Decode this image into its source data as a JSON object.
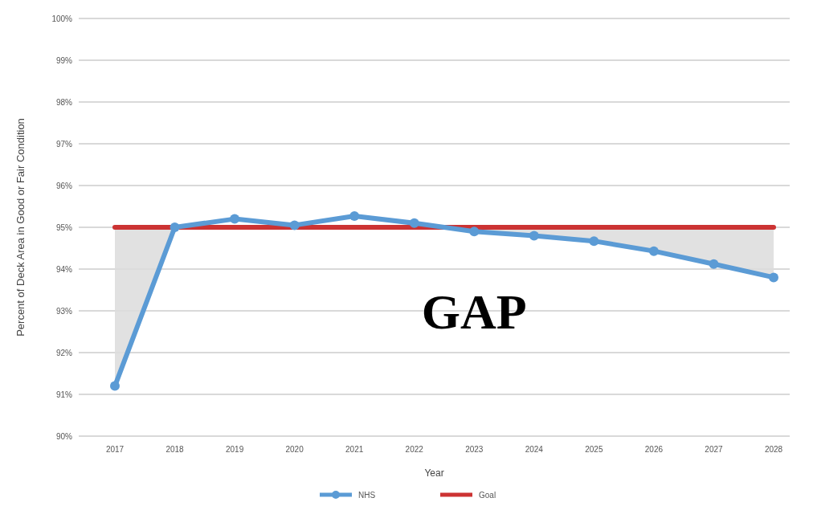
{
  "chart_data": {
    "type": "line",
    "categories": [
      "2017",
      "2018",
      "2019",
      "2020",
      "2021",
      "2022",
      "2023",
      "2024",
      "2025",
      "2026",
      "2027",
      "2028"
    ],
    "xlabel": "Year",
    "ylabel": "Percent of Deck Area in Good or Fair Condition",
    "ylim": [
      90,
      100
    ],
    "yticks": [
      {
        "value": 90,
        "label": "90%"
      },
      {
        "value": 91,
        "label": "91%"
      },
      {
        "value": 92,
        "label": "92%"
      },
      {
        "value": 93,
        "label": "93%"
      },
      {
        "value": 94,
        "label": "94%"
      },
      {
        "value": 95,
        "label": "95%"
      },
      {
        "value": 96,
        "label": "96%"
      },
      {
        "value": 97,
        "label": "97%"
      },
      {
        "value": 98,
        "label": "98%"
      },
      {
        "value": 99,
        "label": "99%"
      },
      {
        "value": 100,
        "label": "100%"
      }
    ],
    "grid": "y",
    "legend": "bottom",
    "series": [
      {
        "name": "NHS",
        "color": "#5b9bd5",
        "marker": "circle",
        "values": [
          91.2,
          95.0,
          95.2,
          95.05,
          95.27,
          95.1,
          94.9,
          94.8,
          94.67,
          94.43,
          94.12,
          93.8
        ]
      },
      {
        "name": "Goal",
        "color": "#cc3333",
        "marker": "none",
        "values": [
          95,
          95,
          95,
          95,
          95,
          95,
          95,
          95,
          95,
          95,
          95,
          95
        ],
        "lower": [
          91.2,
          95,
          95,
          95,
          95,
          95,
          94.9,
          94.8,
          94.67,
          94.43,
          94.12,
          93.8
        ],
        "upper": [
          95,
          95,
          95,
          95,
          95,
          95,
          95,
          95,
          95,
          95,
          95,
          95
        ]
      }
    ],
    "annotations": [
      "GAP"
    ]
  }
}
